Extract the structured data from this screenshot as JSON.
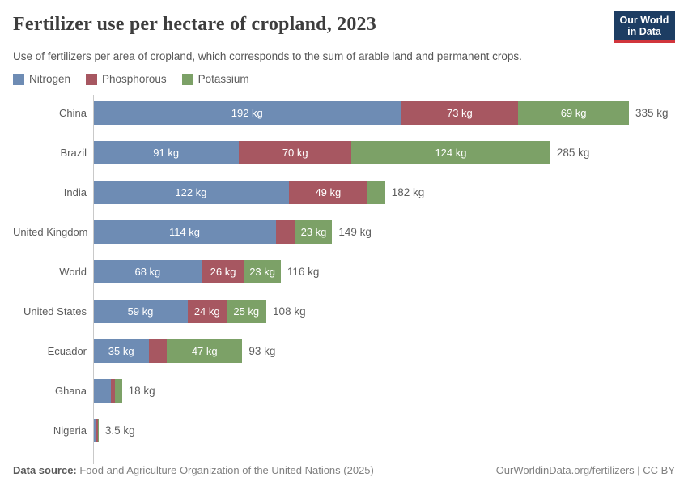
{
  "header": {
    "title": "Fertilizer use per hectare of cropland, 2023",
    "subtitle": "Use of fertilizers per area of cropland, which corresponds to the sum of arable land and permanent crops.",
    "logo_line1": "Our World",
    "logo_line2": "in Data",
    "logo_bg_color": "#1d3d63",
    "logo_accent_color": "#d1353c"
  },
  "legend": [
    {
      "label": "Nitrogen",
      "color": "#6e8cb4"
    },
    {
      "label": "Phosphorous",
      "color": "#a75761"
    },
    {
      "label": "Potassium",
      "color": "#7ca167"
    }
  ],
  "chart_data": {
    "type": "bar",
    "orientation": "horizontal",
    "stacked": true,
    "title": "Fertilizer use per hectare of cropland, 2023",
    "subtitle": "Use of fertilizers per area of cropland, which corresponds to the sum of arable land and permanent crops.",
    "unit": "kg",
    "xlim": [
      0,
      335
    ],
    "grid": false,
    "legend_position": "top-left",
    "series_names": [
      "Nitrogen",
      "Phosphorous",
      "Potassium"
    ],
    "colors": [
      "#6e8cb4",
      "#a75761",
      "#7ca167"
    ],
    "rows": [
      {
        "label": "China",
        "values": [
          192,
          73,
          69
        ],
        "segment_labels": [
          "192 kg",
          "73 kg",
          "69 kg"
        ],
        "total": 335,
        "total_label": "335 kg"
      },
      {
        "label": "Brazil",
        "values": [
          91,
          70,
          124
        ],
        "segment_labels": [
          "91 kg",
          "70 kg",
          "124 kg"
        ],
        "total": 285,
        "total_label": "285 kg"
      },
      {
        "label": "India",
        "values": [
          122,
          49,
          11
        ],
        "segment_labels": [
          "122 kg",
          "49 kg",
          null
        ],
        "total": 182,
        "total_label": "182 kg"
      },
      {
        "label": "United Kingdom",
        "values": [
          114,
          12,
          23
        ],
        "segment_labels": [
          "114 kg",
          null,
          "23 kg"
        ],
        "total": 149,
        "total_label": "149 kg"
      },
      {
        "label": "World",
        "values": [
          68,
          26,
          23
        ],
        "segment_labels": [
          "68 kg",
          "26 kg",
          "23 kg"
        ],
        "total": 116,
        "total_label": "116 kg"
      },
      {
        "label": "United States",
        "values": [
          59,
          24,
          25
        ],
        "segment_labels": [
          "59 kg",
          "24 kg",
          "25 kg"
        ],
        "total": 108,
        "total_label": "108 kg"
      },
      {
        "label": "Ecuador",
        "values": [
          35,
          11,
          47
        ],
        "segment_labels": [
          "35 kg",
          null,
          "47 kg"
        ],
        "total": 93,
        "total_label": "93 kg"
      },
      {
        "label": "Ghana",
        "values": [
          11,
          2.5,
          4.5
        ],
        "segment_labels": [
          null,
          null,
          null
        ],
        "total": 18,
        "total_label": "18 kg"
      },
      {
        "label": "Nigeria",
        "values": [
          2.1,
          1,
          0.4
        ],
        "segment_labels": [
          null,
          null,
          null
        ],
        "total": 3.5,
        "total_label": "3.5 kg"
      }
    ]
  },
  "footer": {
    "source_label": "Data source:",
    "source_text": " Food and Agriculture Organization of the United Nations (2025)",
    "credit": "OurWorldinData.org/fertilizers | CC BY"
  }
}
